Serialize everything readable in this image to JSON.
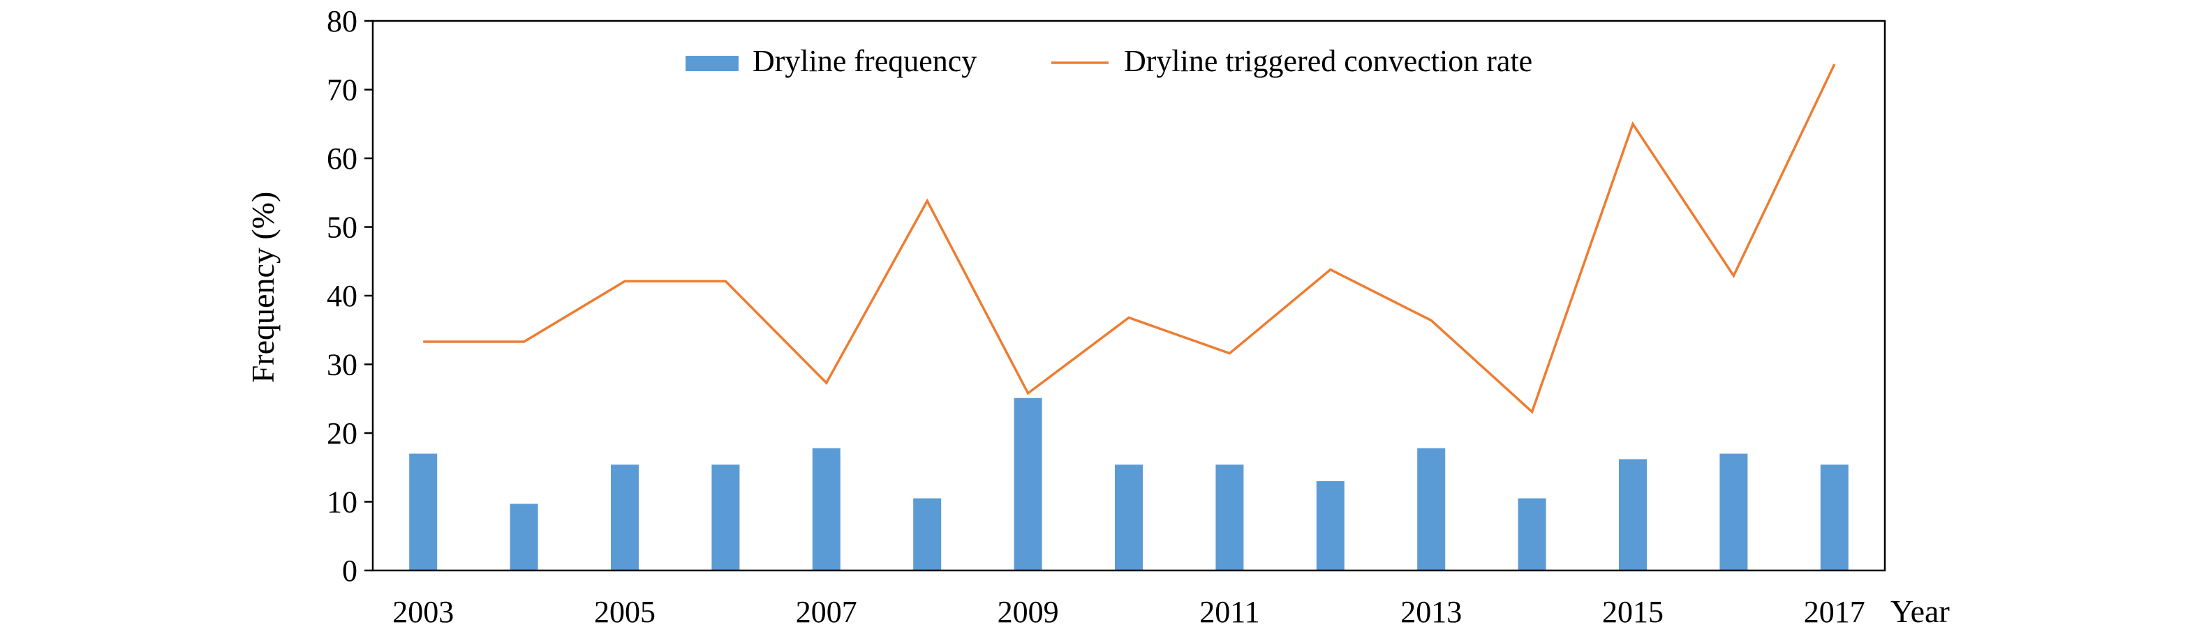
{
  "chart_data": {
    "type": "bar+line",
    "title": "",
    "xlabel": "Year",
    "ylabel": "Frequency (%)",
    "ylim": [
      0,
      80
    ],
    "yticks": [
      0,
      10,
      20,
      30,
      40,
      50,
      60,
      70,
      80
    ],
    "x": [
      2003,
      2004,
      2005,
      2006,
      2007,
      2008,
      2009,
      2010,
      2011,
      2012,
      2013,
      2014,
      2015,
      2016,
      2017
    ],
    "x_tick_labels": [
      "2003",
      "2005",
      "2007",
      "2009",
      "2011",
      "2013",
      "2015",
      "2017"
    ],
    "grid": false,
    "legend": "top-center",
    "series": [
      {
        "name": "Dryline frequency",
        "type": "bar",
        "color": "#5B9BD5",
        "values": [
          17.0,
          9.7,
          15.4,
          15.4,
          17.8,
          10.5,
          25.1,
          15.4,
          15.4,
          13.0,
          17.8,
          10.5,
          16.2,
          17.0,
          15.4
        ]
      },
      {
        "name": "Dryline triggered convection rate",
        "type": "line",
        "color": "#ED7D31",
        "values": [
          33.3,
          33.3,
          42.1,
          42.1,
          27.3,
          53.8,
          25.8,
          36.8,
          31.6,
          43.8,
          36.4,
          23.1,
          65.0,
          42.9,
          73.7
        ]
      }
    ]
  }
}
